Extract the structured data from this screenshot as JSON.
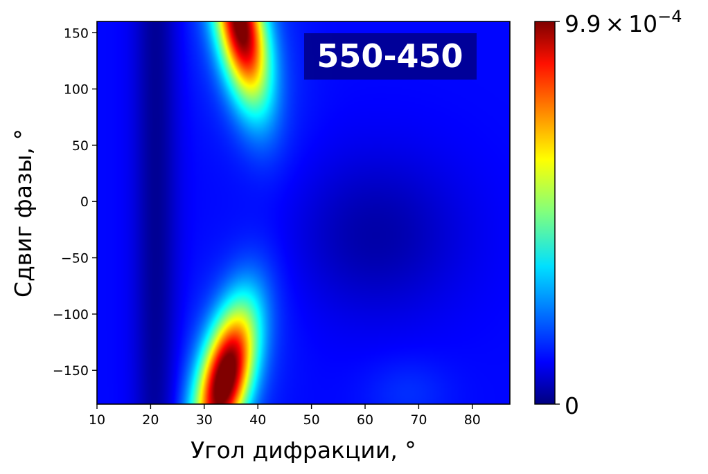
{
  "chart_data": {
    "type": "heatmap",
    "title": "",
    "annotation": "550-450",
    "xlabel": "Угол дифракции, °",
    "ylabel": "Сдвиг фазы, °",
    "xlim": [
      10,
      87
    ],
    "ylim": [
      -180,
      160
    ],
    "x_ticks": [
      10,
      20,
      30,
      40,
      50,
      60,
      70,
      80
    ],
    "y_ticks": [
      150,
      100,
      50,
      0,
      -50,
      -100,
      -150
    ],
    "y_tick_labels": [
      "150",
      "100",
      "50",
      "0",
      "−50",
      "−100",
      "−150"
    ],
    "colormap": "jet",
    "colorbar": {
      "min": 0,
      "max": 0.00099,
      "min_label": "0",
      "max_label_mantissa": "9.9",
      "max_label_times": "×",
      "max_label_base": "10",
      "max_label_exponent": "−4"
    },
    "peaks": [
      {
        "x": 35,
        "y": -155,
        "value": 0.00099
      },
      {
        "x": 37,
        "y": 150,
        "value": 0.00095
      }
    ]
  }
}
